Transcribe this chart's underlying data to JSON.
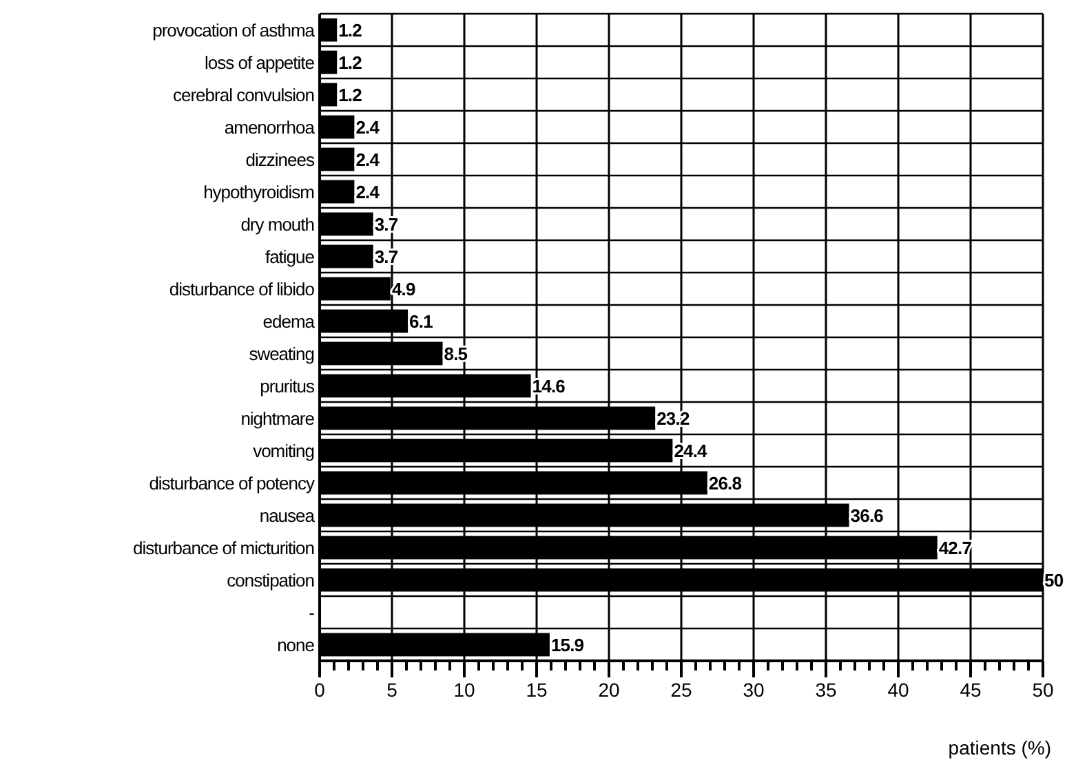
{
  "chart_data": {
    "type": "bar",
    "orientation": "horizontal",
    "xlabel": "patients (%)",
    "categories": [
      "provocation of asthma",
      "loss of appetite",
      "cerebral convulsion",
      "amenorrhoa",
      "dizzinees",
      "hypothyroidism",
      "dry mouth",
      "fatigue",
      "disturbance of libido",
      "edema",
      "sweating",
      "pruritus",
      "nightmare",
      "vomiting",
      "disturbance of potency",
      "nausea",
      "disturbance of micturition",
      "constipation",
      "-",
      "none"
    ],
    "values": [
      1.2,
      1.2,
      1.2,
      2.4,
      2.4,
      2.4,
      3.7,
      3.7,
      4.9,
      6.1,
      8.5,
      14.6,
      23.2,
      24.4,
      26.8,
      36.6,
      42.7,
      50,
      null,
      15.9
    ],
    "color": "#000000",
    "data_labels": true,
    "grid": true,
    "xlim": [
      0,
      50
    ],
    "xticks": [
      0,
      {
        "value": 1,
        "label": null
      },
      {
        "value": 2,
        "label": null
      },
      {
        "value": 3,
        "label": null
      },
      {
        "value": 4,
        "label": null
      },
      5,
      {
        "value": 6,
        "label": null
      },
      {
        "value": 7,
        "label": null
      },
      {
        "value": 8,
        "label": null
      },
      {
        "value": 9,
        "label": null
      },
      10,
      {
        "value": 11,
        "label": null
      },
      {
        "value": 12,
        "label": null
      },
      {
        "value": 13,
        "label": null
      },
      {
        "value": 14,
        "label": null
      },
      15,
      {
        "value": 16,
        "label": null
      },
      {
        "value": 17,
        "label": null
      },
      {
        "value": 18,
        "label": null
      },
      {
        "value": 19,
        "label": null
      },
      20,
      {
        "value": 21,
        "label": null
      },
      {
        "value": 22,
        "label": null
      },
      {
        "value": 23,
        "label": null
      },
      {
        "value": 24,
        "label": null
      },
      25,
      {
        "value": 26,
        "label": null
      },
      {
        "value": 27,
        "label": null
      },
      {
        "value": 28,
        "label": null
      },
      {
        "value": 29,
        "label": null
      },
      30,
      {
        "value": 31,
        "label": null
      },
      {
        "value": 32,
        "label": null
      },
      {
        "value": 33,
        "label": null
      },
      {
        "value": 34,
        "label": null
      },
      35,
      {
        "value": 36,
        "label": null
      },
      {
        "value": 37,
        "label": null
      },
      {
        "value": 38,
        "label": null
      },
      {
        "value": 39,
        "label": null
      },
      40,
      {
        "value": 41,
        "label": null
      },
      {
        "value": 42,
        "label": null
      },
      {
        "value": 43,
        "label": null
      },
      {
        "value": 44,
        "label": null
      },
      45,
      {
        "value": 46,
        "label": null
      },
      {
        "value": 47,
        "label": null
      },
      {
        "value": 48,
        "label": null
      },
      {
        "value": 49,
        "label": null
      },
      50
    ]
  }
}
